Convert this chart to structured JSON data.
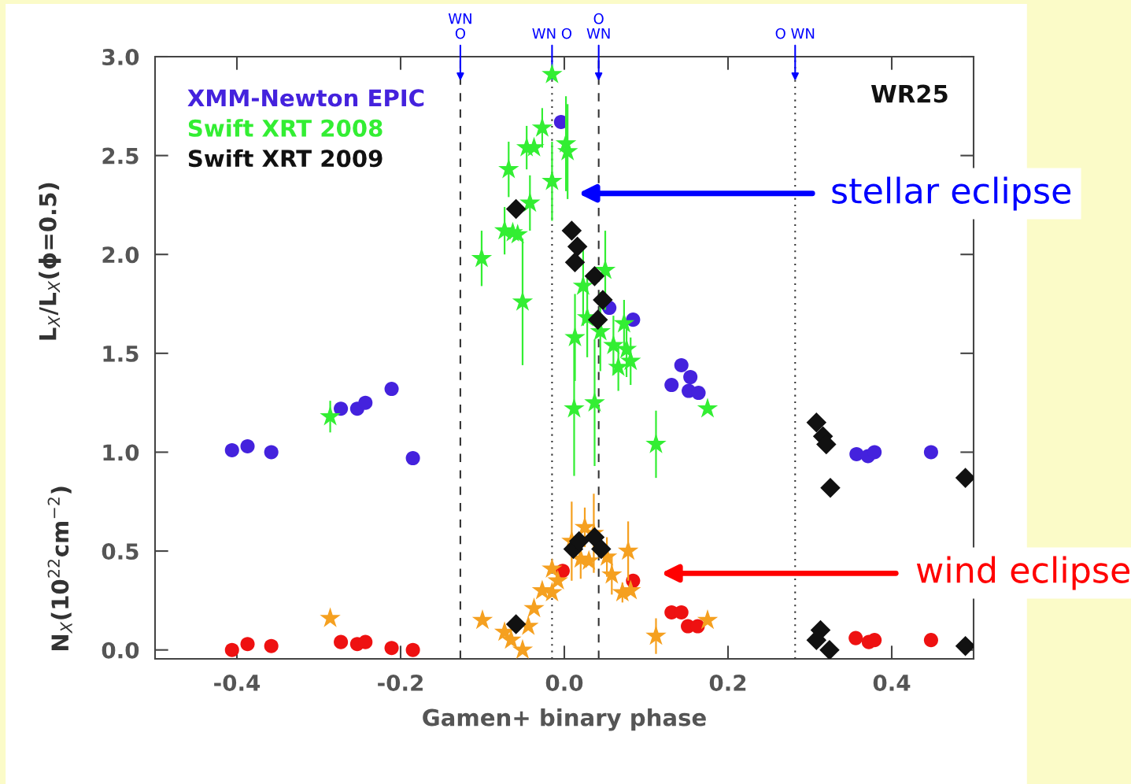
{
  "chart_data": {
    "type": "scatter",
    "xlabel": "Gamen+ binary phase",
    "ylabel": "L$_{X}$/L$_{X}$(ϕ=0.5)",
    "xlim": [
      -0.5,
      0.5
    ],
    "ylim": [
      -0.045,
      3.0
    ],
    "xticks": [
      {
        "value": -0.4,
        "label": "-0.4"
      },
      {
        "value": -0.2,
        "label": "-0.2"
      },
      {
        "value": 0.0,
        "label": "0.0"
      },
      {
        "value": 0.2,
        "label": "0.2"
      },
      {
        "value": 0.4,
        "label": "0.4"
      }
    ],
    "yticks": [
      {
        "value": 0.0,
        "label": "0.0"
      },
      {
        "value": 0.5,
        "label": "0.5"
      },
      {
        "value": 1.0,
        "label": "1.0"
      },
      {
        "value": 1.5,
        "label": "1.5"
      },
      {
        "value": 2.0,
        "label": "2.0"
      },
      {
        "value": 2.5,
        "label": "2.5"
      },
      {
        "value": 3.0,
        "label": "3.0"
      }
    ],
    "grid": false,
    "legend": "top left",
    "series": [
      {
        "name": "XMM-Newton EPIC",
        "color": "#4422dd",
        "marker": "circle",
        "x": [
          -0.406,
          -0.387,
          -0.358,
          -0.273,
          -0.253,
          -0.243,
          -0.211,
          -0.185,
          -0.004,
          0.055,
          0.084,
          0.131,
          0.143,
          0.154,
          0.152,
          0.164,
          0.357,
          0.371,
          0.379,
          0.448
        ],
        "values": [
          1.01,
          1.03,
          1.0,
          1.22,
          1.22,
          1.25,
          1.32,
          0.97,
          2.67,
          1.73,
          1.67,
          1.34,
          1.44,
          1.38,
          1.31,
          1.3,
          0.99,
          0.98,
          1.0,
          1.0
        ]
      },
      {
        "name": "Swift XRT 2008",
        "color": "#33ee33",
        "marker": "star",
        "x": [
          -0.286,
          -0.101,
          -0.068,
          -0.073,
          -0.063,
          -0.057,
          -0.042,
          -0.046,
          -0.037,
          -0.027,
          -0.015,
          -0.015,
          0.002,
          0.004,
          -0.051,
          0.023,
          0.05,
          0.013,
          0.028,
          0.044,
          0.06,
          0.066,
          0.073,
          0.076,
          0.081,
          0.012,
          0.037,
          0.112,
          0.175
        ],
        "values": [
          1.18,
          1.98,
          2.43,
          2.12,
          2.11,
          2.1,
          2.26,
          2.54,
          2.54,
          2.64,
          2.91,
          2.37,
          2.56,
          2.52,
          1.76,
          1.84,
          1.92,
          1.58,
          1.68,
          1.61,
          1.54,
          1.43,
          1.65,
          1.52,
          1.46,
          1.22,
          1.25,
          1.04,
          1.22
        ],
        "errors": [
          0.08,
          0.14,
          0.14,
          0.12,
          null,
          null,
          0.14,
          0.11,
          null,
          0.1,
          null,
          0.2,
          0.24,
          0.24,
          0.32,
          0.2,
          0.2,
          0.22,
          0.2,
          0.2,
          0.15,
          0.12,
          0.12,
          0.14,
          0.12,
          0.34,
          0.32,
          0.17,
          null
        ]
      },
      {
        "name": "Swift XRT 2009",
        "color": "#111111",
        "marker": "diamond",
        "x": [
          -0.059,
          0.009,
          0.016,
          0.013,
          0.037,
          0.047,
          0.041,
          0.308,
          0.316,
          0.32,
          0.325,
          0.49
        ],
        "values": [
          2.23,
          2.12,
          2.04,
          1.96,
          1.89,
          1.77,
          1.67,
          1.15,
          1.08,
          1.04,
          0.82,
          0.87
        ]
      },
      {
        "color": "#ee1111",
        "marker": "circle",
        "x": [
          -0.406,
          -0.387,
          -0.358,
          -0.273,
          -0.253,
          -0.243,
          -0.211,
          -0.185,
          -0.002,
          0.084,
          0.131,
          0.143,
          0.151,
          0.163,
          0.356,
          0.372,
          0.379,
          0.448
        ],
        "values": [
          0.0,
          0.03,
          0.02,
          0.04,
          0.03,
          0.04,
          0.01,
          0.0,
          0.4,
          0.35,
          0.19,
          0.19,
          0.12,
          0.12,
          0.06,
          0.04,
          0.05,
          0.05
        ]
      },
      {
        "color": "#f5a020",
        "marker": "star",
        "x": [
          -0.286,
          -0.1,
          -0.073,
          -0.065,
          -0.051,
          -0.044,
          -0.037,
          -0.027,
          -0.015,
          -0.015,
          -0.008,
          0.009,
          0.02,
          0.025,
          0.036,
          0.03,
          0.052,
          0.058,
          0.071,
          0.078,
          0.081,
          0.112,
          0.175
        ],
        "values": [
          0.16,
          0.15,
          0.09,
          0.05,
          0.0,
          0.12,
          0.21,
          0.3,
          0.29,
          0.41,
          0.35,
          0.55,
          0.46,
          0.62,
          0.59,
          0.45,
          0.47,
          0.38,
          0.29,
          0.5,
          0.3,
          0.07,
          0.15
        ],
        "errors": [
          null,
          null,
          null,
          null,
          null,
          null,
          null,
          null,
          null,
          null,
          null,
          0.2,
          0.1,
          0.1,
          0.2,
          null,
          0.1,
          0.1,
          0.05,
          0.15,
          null,
          0.09,
          null
        ]
      },
      {
        "color": "#111111",
        "marker": "diamond",
        "x": [
          -0.059,
          0.011,
          0.018,
          0.037,
          0.045,
          0.313,
          0.308,
          0.324,
          0.49
        ],
        "values": [
          0.13,
          0.51,
          0.55,
          0.57,
          0.51,
          0.1,
          0.05,
          0.0,
          0.02
        ]
      }
    ],
    "ref_lines": [
      {
        "axis": "x",
        "value": -0.127,
        "label": "WN\nO",
        "line_style": "dashed",
        "color": "#333333"
      },
      {
        "axis": "x",
        "value": -0.015,
        "label": "WN O",
        "line_style": "dotted",
        "color": "#333333"
      },
      {
        "axis": "x",
        "value": 0.042,
        "label": "O\nWN",
        "line_style": "dashed",
        "color": "#333333"
      },
      {
        "axis": "x",
        "value": 0.282,
        "label": "O WN",
        "line_style": "dotted",
        "color": "#333333"
      }
    ],
    "annotations": [
      "stellar eclipse",
      "wind eclipse",
      "WR25",
      "N$_{X}$(10$^{22}$cm$^{−2}$)"
    ]
  }
}
